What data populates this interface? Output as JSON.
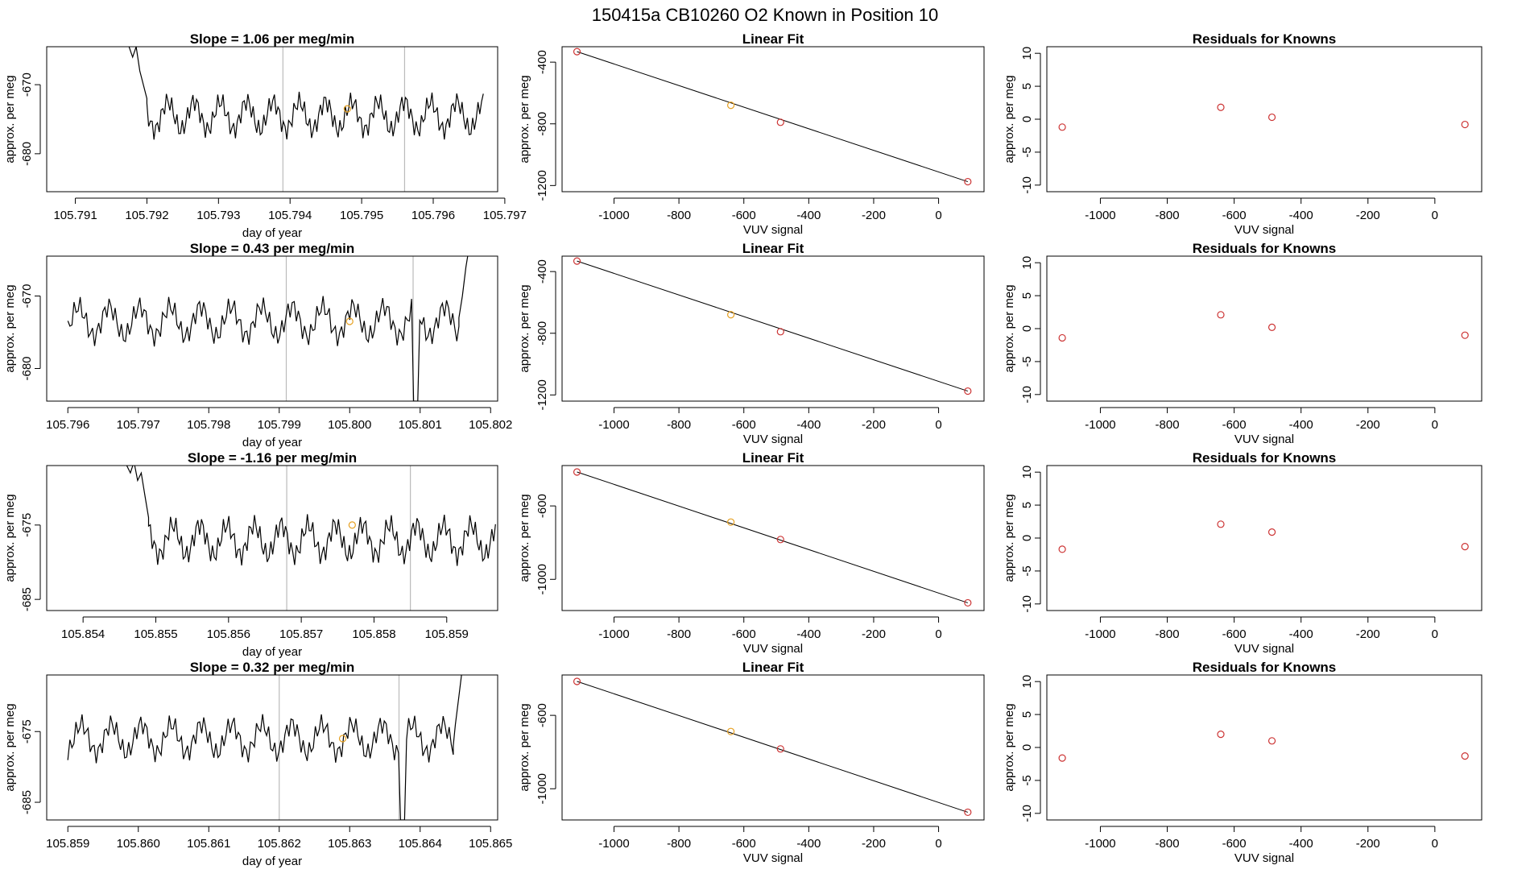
{
  "figure": {
    "title": "150415a     CB10260    O2 Known in Position  10"
  },
  "colors": {
    "line": "#000000",
    "box": "#000000",
    "marker": "#cc3333",
    "highlight": "#e6a020",
    "vline": "#bbbbbb"
  },
  "rows": [
    {
      "ts_title": "Slope =  1.06  per meg/min",
      "ts_xticks": [
        "105.791",
        "105.792",
        "105.793",
        "105.794",
        "105.795",
        "105.796",
        "105.797"
      ],
      "ts_yticks": [
        "-670",
        "-680"
      ]
    },
    {
      "ts_title": "Slope =  0.43  per meg/min",
      "ts_xticks": [
        "105.796",
        "105.797",
        "105.798",
        "105.799",
        "105.800",
        "105.801",
        "105.802"
      ],
      "ts_yticks": [
        "-670",
        "-680"
      ]
    },
    {
      "ts_title": "Slope =  -1.16  per meg/min",
      "ts_xticks": [
        "105.854",
        "105.855",
        "105.856",
        "105.857",
        "105.858",
        "105.859"
      ],
      "ts_yticks": [
        "-675",
        "-685"
      ]
    },
    {
      "ts_title": "Slope =  0.32  per meg/min",
      "ts_xticks": [
        "105.859",
        "105.860",
        "105.861",
        "105.862",
        "105.863",
        "105.864",
        "105.865"
      ],
      "ts_yticks": [
        "-675",
        "-685"
      ]
    }
  ],
  "common": {
    "ts_xlabel": "day of year",
    "ts_ylabel": "approx. per meg",
    "fit_title": "Linear Fit",
    "fit_xlabel": "VUV signal",
    "fit_ylabel": "approx. per meg",
    "res_title": "Residuals for Knowns",
    "res_xlabel": "VUV signal",
    "res_ylabel": "approx. per meg",
    "vuv_ticks": [
      "-1000",
      "-800",
      "-600",
      "-400",
      "-200",
      "0"
    ],
    "res_yticks": [
      "10",
      "5",
      "0",
      "-5",
      "-10"
    ]
  },
  "chart_data": [
    {
      "type": "line",
      "panel": "time-series",
      "row": 1,
      "title": "Slope =  1.06  per meg/min",
      "xlabel": "day of year",
      "ylabel": "approx. per meg",
      "xlim": [
        105.7906,
        105.7969
      ],
      "ylim": [
        -685.5,
        -664.5
      ],
      "x_start": 105.7916,
      "x_end": 105.7967,
      "baseline": -674.5,
      "amplitude": 3.5,
      "start_spike": [
        [
          105.7916,
          -664
        ],
        [
          105.7917,
          -663
        ],
        [
          105.7918,
          -666
        ],
        [
          105.79185,
          -664.5
        ],
        [
          105.7919,
          -668
        ],
        [
          105.79195,
          -670
        ],
        [
          105.792,
          -672
        ]
      ],
      "end_rise": [],
      "dip": null,
      "vlines": [
        105.7939,
        105.7956
      ],
      "highlight": [
        105.7948,
        -673.5
      ]
    },
    {
      "type": "line",
      "panel": "time-series",
      "row": 2,
      "title": "Slope =  0.43  per meg/min",
      "xlabel": "day of year",
      "ylabel": "approx. per meg",
      "xlim": [
        105.7957,
        105.8021
      ],
      "ylim": [
        -684.5,
        -664.5
      ],
      "x_start": 105.796,
      "x_end": 105.80155,
      "baseline": -673.5,
      "amplitude": 3.5,
      "start_spike": [],
      "end_rise": [
        [
          105.80155,
          -673
        ],
        [
          105.8016,
          -670
        ],
        [
          105.80165,
          -666
        ],
        [
          105.8017,
          -663
        ]
      ],
      "dip": [
        105.80095,
        -684.5
      ],
      "vlines": [
        105.7991,
        105.8009
      ],
      "highlight": [
        105.8,
        -673.5
      ]
    },
    {
      "type": "line",
      "panel": "time-series",
      "row": 3,
      "title": "Slope =  -1.16  per meg/min",
      "xlabel": "day of year",
      "ylabel": "approx. per meg",
      "xlim": [
        105.8535,
        105.8597
      ],
      "ylim": [
        -686.5,
        -667
      ],
      "x_start": 105.8546,
      "x_end": 105.85967,
      "baseline": -677,
      "amplitude": 3.5,
      "start_spike": [
        [
          105.8546,
          -667
        ],
        [
          105.85465,
          -668
        ],
        [
          105.8547,
          -666.5
        ],
        [
          105.85475,
          -669
        ],
        [
          105.8548,
          -668
        ],
        [
          105.85485,
          -671
        ],
        [
          105.8549,
          -674
        ]
      ],
      "end_rise": [],
      "dip": null,
      "vlines": [
        105.8568,
        105.8585
      ],
      "highlight": [
        105.8577,
        -675
      ]
    },
    {
      "type": "line",
      "panel": "time-series",
      "row": 4,
      "title": "Slope =  0.32  per meg/min",
      "xlabel": "day of year",
      "ylabel": "approx. per meg",
      "xlim": [
        105.8587,
        105.8651
      ],
      "ylim": [
        -687.5,
        -667
      ],
      "x_start": 105.859,
      "x_end": 105.86447,
      "baseline": -676,
      "amplitude": 3.5,
      "start_spike": [],
      "end_rise": [
        [
          105.86447,
          -677
        ],
        [
          105.8645,
          -674
        ],
        [
          105.86455,
          -670
        ],
        [
          105.8646,
          -666
        ]
      ],
      "dip": [
        105.86375,
        -687.5
      ],
      "vlines": [
        105.862,
        105.8637
      ],
      "highlight": [
        105.8629,
        -676
      ]
    },
    {
      "type": "scatter",
      "panel": "linear-fit",
      "rows": [
        1,
        2
      ],
      "title": "Linear Fit",
      "xlabel": "VUV signal",
      "ylabel": "approx. per meg",
      "xlim": [
        -1160,
        140
      ],
      "ylim": [
        -1240,
        -300
      ],
      "yticks": [
        "-400",
        "-800",
        "-1200"
      ],
      "points": [
        [
          -1114,
          -332
        ],
        [
          -640,
          -680
        ],
        [
          -487,
          -790
        ],
        [
          90,
          -1175
        ]
      ],
      "point_colors": [
        "marker",
        "highlight",
        "marker",
        "marker"
      ],
      "fit_line": [
        [
          -1114,
          -332
        ],
        [
          90,
          -1175
        ]
      ]
    },
    {
      "type": "scatter",
      "panel": "linear-fit",
      "rows": [
        3,
        4
      ],
      "title": "Linear Fit",
      "xlabel": "VUV signal",
      "ylabel": "approx. per meg",
      "xlim": [
        -1160,
        140
      ],
      "ylim": [
        -1170,
        -380
      ],
      "yticks": [
        "-600",
        "-1000"
      ],
      "points": [
        [
          -1114,
          -415
        ],
        [
          -640,
          -688
        ],
        [
          -487,
          -783
        ],
        [
          90,
          -1128
        ]
      ],
      "point_colors": [
        "marker",
        "highlight",
        "marker",
        "marker"
      ],
      "fit_line": [
        [
          -1114,
          -415
        ],
        [
          90,
          -1128
        ]
      ]
    },
    {
      "type": "scatter",
      "panel": "residuals",
      "row": 1,
      "title": "Residuals for Knowns",
      "xlabel": "VUV signal",
      "ylabel": "approx. per meg",
      "xlim": [
        -1160,
        140
      ],
      "ylim": [
        -11,
        11
      ],
      "points": [
        [
          -1114,
          -1.2
        ],
        [
          -640,
          1.8
        ],
        [
          -487,
          0.3
        ],
        [
          90,
          -0.8
        ]
      ]
    },
    {
      "type": "scatter",
      "panel": "residuals",
      "row": 2,
      "title": "Residuals for Knowns",
      "xlabel": "VUV signal",
      "ylabel": "approx. per meg",
      "xlim": [
        -1160,
        140
      ],
      "ylim": [
        -11,
        11
      ],
      "points": [
        [
          -1114,
          -1.4
        ],
        [
          -640,
          2.1
        ],
        [
          -487,
          0.2
        ],
        [
          90,
          -1.0
        ]
      ]
    },
    {
      "type": "scatter",
      "panel": "residuals",
      "row": 3,
      "title": "Residuals for Knowns",
      "xlabel": "VUV signal",
      "ylabel": "approx. per meg",
      "xlim": [
        -1160,
        140
      ],
      "ylim": [
        -11,
        11
      ],
      "points": [
        [
          -1114,
          -1.7
        ],
        [
          -640,
          2.1
        ],
        [
          -487,
          0.9
        ],
        [
          90,
          -1.3
        ]
      ]
    },
    {
      "type": "scatter",
      "panel": "residuals",
      "row": 4,
      "title": "Residuals for Knowns",
      "xlabel": "VUV signal",
      "ylabel": "approx. per meg",
      "xlim": [
        -1160,
        140
      ],
      "ylim": [
        -11,
        11
      ],
      "points": [
        [
          -1114,
          -1.6
        ],
        [
          -640,
          2.0
        ],
        [
          -487,
          1.0
        ],
        [
          90,
          -1.3
        ]
      ]
    }
  ]
}
